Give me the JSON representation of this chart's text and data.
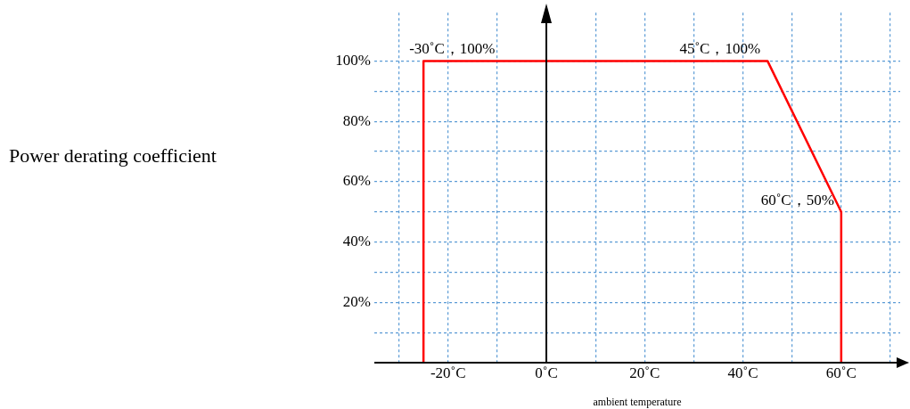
{
  "chart_data": {
    "type": "line",
    "xlabel": "ambient temperature",
    "x": [
      -25,
      -25,
      45,
      60,
      60
    ],
    "series": [
      {
        "color": "#ff0000",
        "values": [
          0,
          100,
          100,
          50,
          0
        ]
      }
    ],
    "xlim": [
      -35,
      72
    ],
    "ylim": [
      0,
      116
    ],
    "xticks": [
      {
        "value": -30,
        "label": null
      },
      {
        "value": -20,
        "label": "-20˚C"
      },
      {
        "value": -10,
        "label": null
      },
      {
        "value": 0,
        "label": "0˚C"
      },
      {
        "value": 10,
        "label": null
      },
      {
        "value": 20,
        "label": "20˚C"
      },
      {
        "value": 30,
        "label": null
      },
      {
        "value": 40,
        "label": "40˚C"
      },
      {
        "value": 50,
        "label": null
      },
      {
        "value": 60,
        "label": "60˚C"
      },
      {
        "value": 70,
        "label": null
      }
    ],
    "yticks": [
      {
        "value": 10,
        "label": null
      },
      {
        "value": 20,
        "label": "20%"
      },
      {
        "value": 30,
        "label": null
      },
      {
        "value": 40,
        "label": "40%"
      },
      {
        "value": 50,
        "label": null
      },
      {
        "value": 60,
        "label": "60%"
      },
      {
        "value": 70,
        "label": null
      },
      {
        "value": 80,
        "label": "80%"
      },
      {
        "value": 90,
        "label": null
      },
      {
        "value": 100,
        "label": "100%"
      }
    ],
    "grid": true,
    "marker": "none",
    "line_style": "solid",
    "legend": false,
    "annotations": [
      "Power derating coefficient",
      {
        "text": "-30˚C，100%",
        "x": -25,
        "y": 100
      },
      {
        "text": "45˚C，100%",
        "x": 45,
        "y": 100
      },
      {
        "text": "60˚C，50%",
        "x": 60,
        "y": 50
      }
    ]
  }
}
